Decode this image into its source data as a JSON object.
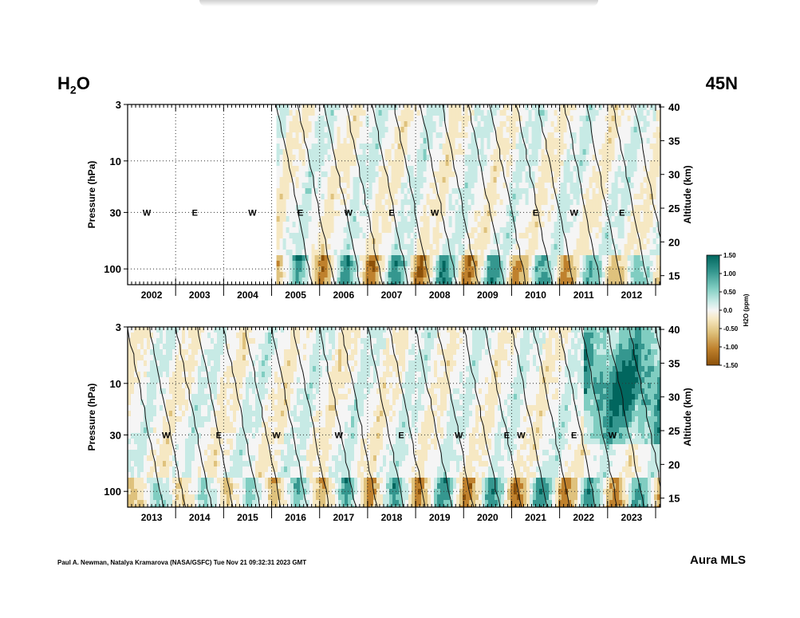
{
  "header": {
    "species_main": "H",
    "species_sub": "2",
    "species_tail": "O",
    "latitude": "45N"
  },
  "footer": {
    "credit": "Paul A. Newman, Natalya Kramarova (NASA/GSFC) Tue Nov 21 09:32:31 2023 GMT",
    "instrument": "Aura MLS"
  },
  "chart_data": [
    {
      "type": "heatmap",
      "panel": "upper",
      "x_label": "",
      "x_ticks": [
        "2002",
        "2003",
        "2004",
        "2005",
        "2006",
        "2007",
        "2008",
        "2009",
        "2010",
        "2011",
        "2012"
      ],
      "x_range": [
        2001.5,
        2012.6
      ],
      "data_start": 2004.6,
      "y_left_label": "Pressure (hPa)",
      "y_left_ticks": [
        "3",
        "10",
        "30",
        "100"
      ],
      "y_left_range_hPa": [
        3,
        140
      ],
      "y_left_scale": "log",
      "y_right_label": "Altitude (km)",
      "y_right_ticks": [
        "40",
        "35",
        "30",
        "25",
        "20",
        "15"
      ],
      "qbo_phase_markers": [
        {
          "label": "W",
          "x": 2001.9
        },
        {
          "label": "E",
          "x": 2002.9
        },
        {
          "label": "W",
          "x": 2004.1
        },
        {
          "label": "E",
          "x": 2005.1
        },
        {
          "label": "W",
          "x": 2006.1
        },
        {
          "label": "E",
          "x": 2007.0
        },
        {
          "label": "W",
          "x": 2007.9
        },
        {
          "label": "E",
          "x": 2010.0
        },
        {
          "label": "W",
          "x": 2010.8
        },
        {
          "label": "E",
          "x": 2011.8
        }
      ],
      "grid": true
    },
    {
      "type": "heatmap",
      "panel": "lower",
      "x_label": "",
      "x_ticks": [
        "2013",
        "2014",
        "2015",
        "2016",
        "2017",
        "2018",
        "2019",
        "2020",
        "2021",
        "2022",
        "2023"
      ],
      "x_range": [
        2012.5,
        2023.6
      ],
      "data_start": 2012.5,
      "y_left_label": "Pressure (hPa)",
      "y_left_ticks": [
        "3",
        "10",
        "30",
        "100"
      ],
      "y_left_range_hPa": [
        3,
        140
      ],
      "y_left_scale": "log",
      "y_right_label": "Altitude (km)",
      "y_right_ticks": [
        "40",
        "35",
        "30",
        "25",
        "20",
        "15"
      ],
      "qbo_phase_markers": [
        {
          "label": "W",
          "x": 2013.3
        },
        {
          "label": "E",
          "x": 2014.4
        },
        {
          "label": "W",
          "x": 2015.6
        },
        {
          "label": "W",
          "x": 2016.9
        },
        {
          "label": "E",
          "x": 2018.2
        },
        {
          "label": "W",
          "x": 2019.4
        },
        {
          "label": "E",
          "x": 2020.4
        },
        {
          "label": "W",
          "x": 2020.7
        },
        {
          "label": "E",
          "x": 2021.8
        },
        {
          "label": "W",
          "x": 2022.6
        }
      ],
      "grid": true
    }
  ],
  "colorbar": {
    "label": "H2O (ppm)",
    "ticks": [
      "1.50",
      "1.00",
      "0.50",
      "0.0",
      "-0.50",
      "-1.00",
      "-1.50"
    ],
    "range": [
      -1.5,
      1.5
    ],
    "colors": [
      "#8c510a",
      "#bf812d",
      "#dfc27d",
      "#f6e8c3",
      "#f5f5f5",
      "#c7eae5",
      "#80cdc1",
      "#35978f",
      "#01665e"
    ]
  }
}
